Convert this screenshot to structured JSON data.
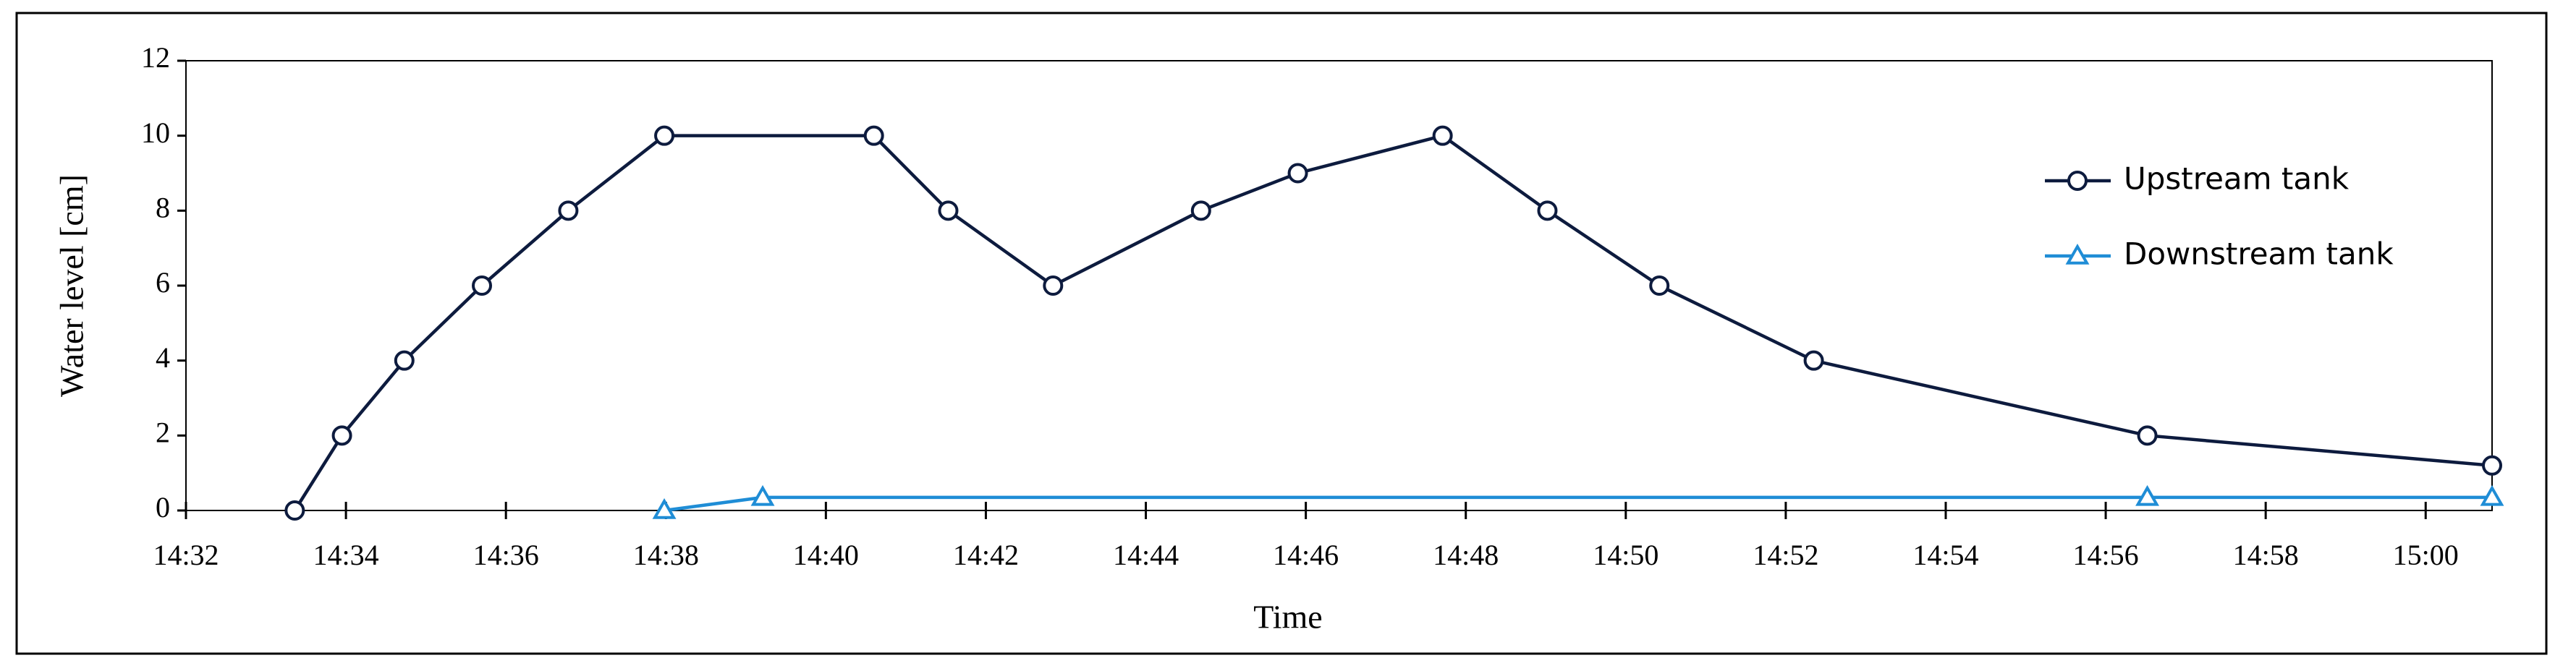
{
  "chart_data": {
    "type": "line",
    "x_label": "Time",
    "y_label": "Water level [cm]",
    "xlim": [
      872,
      900.83
    ],
    "xticks": [
      {
        "value": 872,
        "label": "14:32"
      },
      {
        "value": 874,
        "label": "14:34"
      },
      {
        "value": 876,
        "label": "14:36"
      },
      {
        "value": 878,
        "label": "14:38"
      },
      {
        "value": 880,
        "label": "14:40"
      },
      {
        "value": 882,
        "label": "14:42"
      },
      {
        "value": 884,
        "label": "14:44"
      },
      {
        "value": 886,
        "label": "14:46"
      },
      {
        "value": 888,
        "label": "14:48"
      },
      {
        "value": 890,
        "label": "14:50"
      },
      {
        "value": 892,
        "label": "14:52"
      },
      {
        "value": 894,
        "label": "14:54"
      },
      {
        "value": 896,
        "label": "14:56"
      },
      {
        "value": 898,
        "label": "14:58"
      },
      {
        "value": 900,
        "label": "15:00"
      }
    ],
    "ylim": [
      0,
      12
    ],
    "yticks": [
      0,
      2,
      4,
      6,
      8,
      10,
      12
    ],
    "grid": false,
    "legend": "right",
    "series": [
      {
        "name": "Upstream tank",
        "color": "#0d1b3e",
        "marker": "circle",
        "x": [
          873.36,
          873.95,
          874.73,
          875.7,
          876.78,
          877.98,
          880.6,
          881.53,
          882.84,
          884.69,
          885.9,
          887.71,
          889.02,
          890.42,
          892.35,
          896.52,
          900.83
        ],
        "values": [
          0,
          2,
          4,
          6,
          8,
          10,
          10,
          8,
          6,
          8,
          9,
          10,
          8,
          6,
          4,
          2,
          1.2
        ]
      },
      {
        "name": "Downstream tank",
        "color": "#1f8dd6",
        "marker": "triangle",
        "x": [
          877.98,
          879.21,
          896.52,
          900.83
        ],
        "values": [
          0,
          0.35,
          0.35,
          0.35
        ]
      }
    ]
  }
}
